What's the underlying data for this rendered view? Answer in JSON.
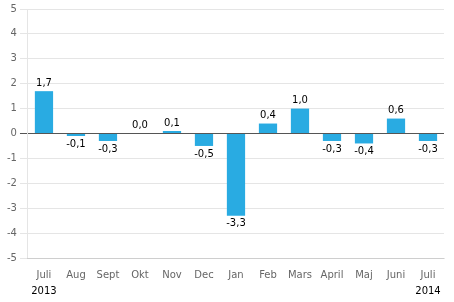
{
  "chart_data": {
    "type": "bar",
    "categories": [
      "Juli",
      "Aug",
      "Sept",
      "Okt",
      "Nov",
      "Dec",
      "Jan",
      "Feb",
      "Mars",
      "April",
      "Maj",
      "Juni",
      "Juli"
    ],
    "values": [
      1.7,
      -0.1,
      -0.3,
      0.0,
      0.1,
      -0.5,
      -3.3,
      0.4,
      1.0,
      -0.3,
      -0.4,
      0.6,
      -0.3
    ],
    "value_labels": [
      "1,7",
      "-0,1",
      "-0,3",
      "0,0",
      "0,1",
      "-0,5",
      "-3,3",
      "0,4",
      "1,0",
      "-0,3",
      "-0,4",
      "0,6",
      "-0,3"
    ],
    "data_labels": true,
    "color": "#29abe2",
    "ylim": [
      -5,
      5
    ],
    "yticks": [
      -5,
      -4,
      -3,
      -2,
      -1,
      0,
      1,
      2,
      3,
      4,
      5
    ],
    "grid": true,
    "annotations": [
      {
        "text": "2013",
        "x": 0
      },
      {
        "text": "2014",
        "x": 12
      }
    ]
  }
}
